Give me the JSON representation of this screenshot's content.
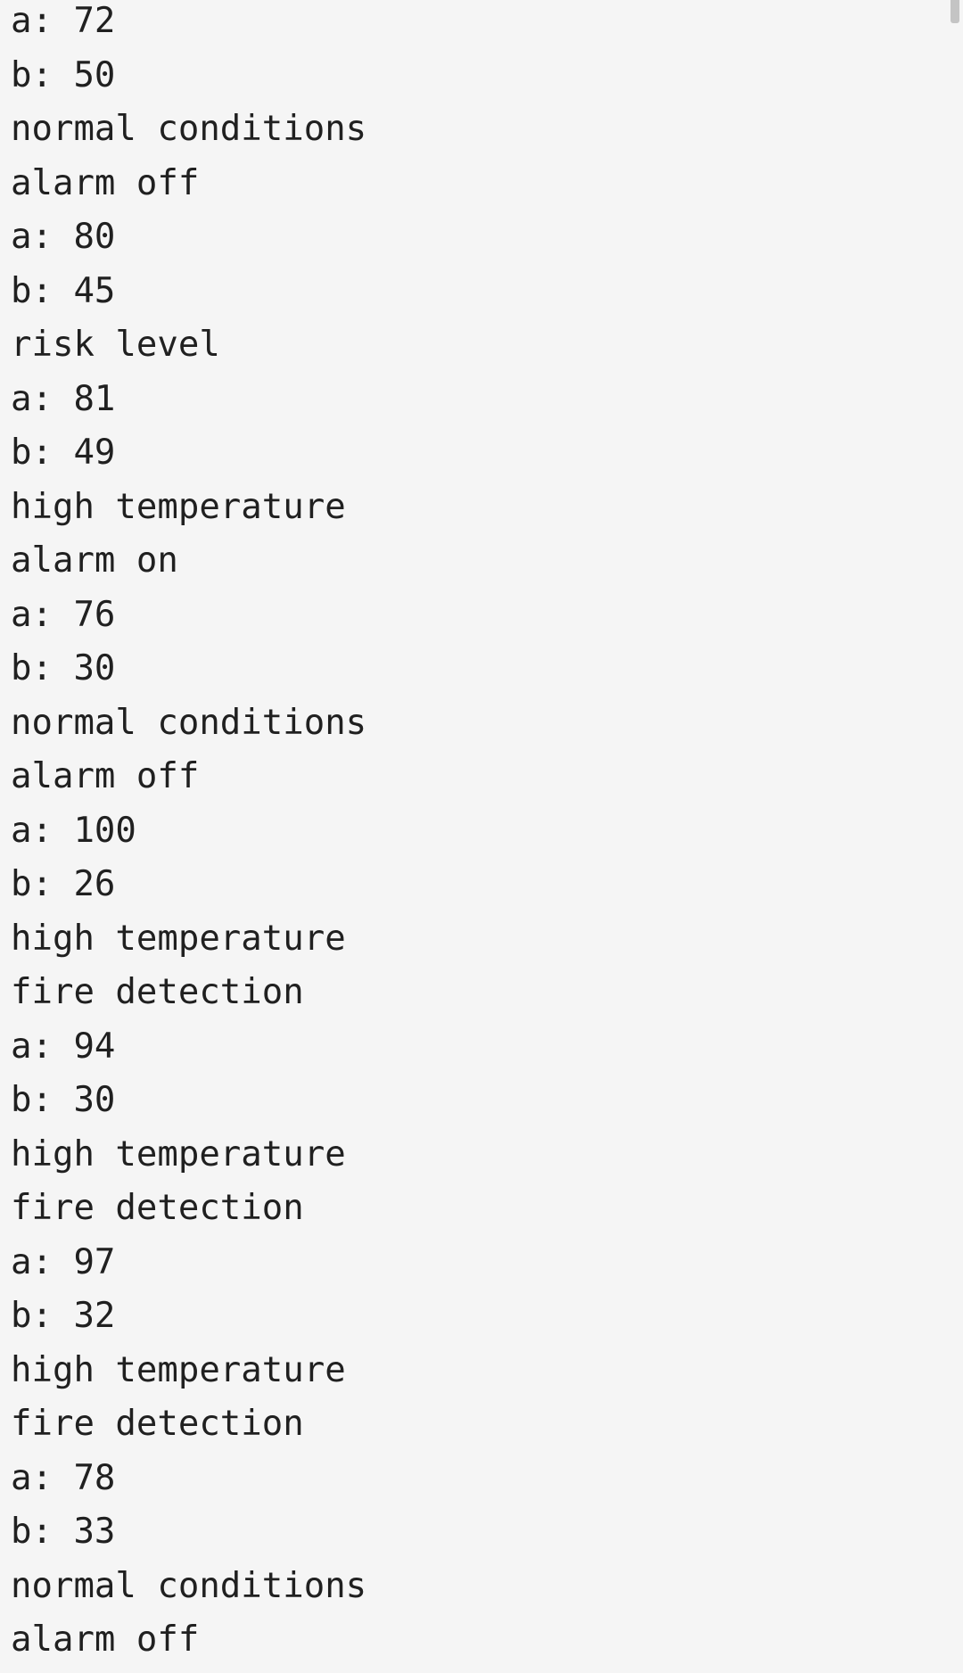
{
  "log": {
    "lines": [
      "a: 72",
      "b: 50",
      "normal conditions",
      "alarm off",
      "a: 80",
      "b: 45",
      "risk level",
      "a: 81",
      "b: 49",
      "high temperature",
      "alarm on",
      "a: 76",
      "b: 30",
      "normal conditions",
      "alarm off",
      "a: 100",
      "b: 26",
      "high temperature",
      "fire detection",
      "a: 94",
      "b: 30",
      "high temperature",
      "fire detection",
      "a: 97",
      "b: 32",
      "high temperature",
      "fire detection",
      "a: 78",
      "b: 33",
      "normal conditions",
      "alarm off"
    ]
  }
}
